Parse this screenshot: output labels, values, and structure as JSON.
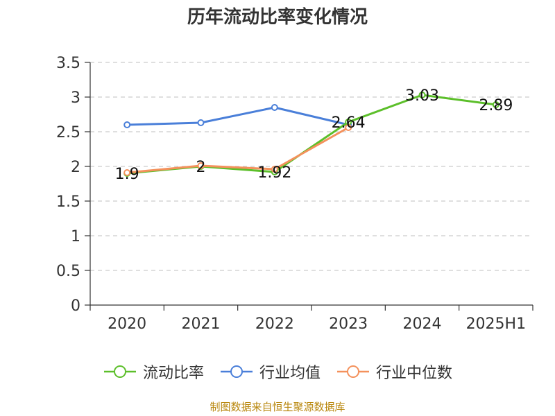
{
  "chart_data": {
    "type": "line",
    "title": "历年流动比率变化情况",
    "categories": [
      "2020",
      "2021",
      "2022",
      "2023",
      "2024",
      "2025H1"
    ],
    "ylim": [
      0,
      3.5
    ],
    "yticks": [
      "0",
      "0.5",
      "1",
      "1.5",
      "2",
      "2.5",
      "3",
      "3.5"
    ],
    "ytick_values": [
      0,
      0.5,
      1,
      1.5,
      2,
      2.5,
      3,
      3.5
    ],
    "grid": true,
    "legend_position": "bottom",
    "series": [
      {
        "name": "流动比率",
        "color": "#5cbf2a",
        "values": [
          1.9,
          2,
          1.92,
          2.64,
          3.03,
          2.89
        ],
        "labels": [
          "1.9",
          "2",
          "1.92",
          "2.64",
          "3.03",
          "2.89"
        ]
      },
      {
        "name": "行业均值",
        "color": "#4a7fd9",
        "values": [
          2.6,
          2.63,
          2.85,
          2.6,
          null,
          null
        ]
      },
      {
        "name": "行业中位数",
        "color": "#f4915c",
        "values": [
          1.91,
          2.01,
          1.96,
          2.56,
          null,
          null
        ]
      }
    ]
  },
  "source": "制图数据来自恒生聚源数据库"
}
